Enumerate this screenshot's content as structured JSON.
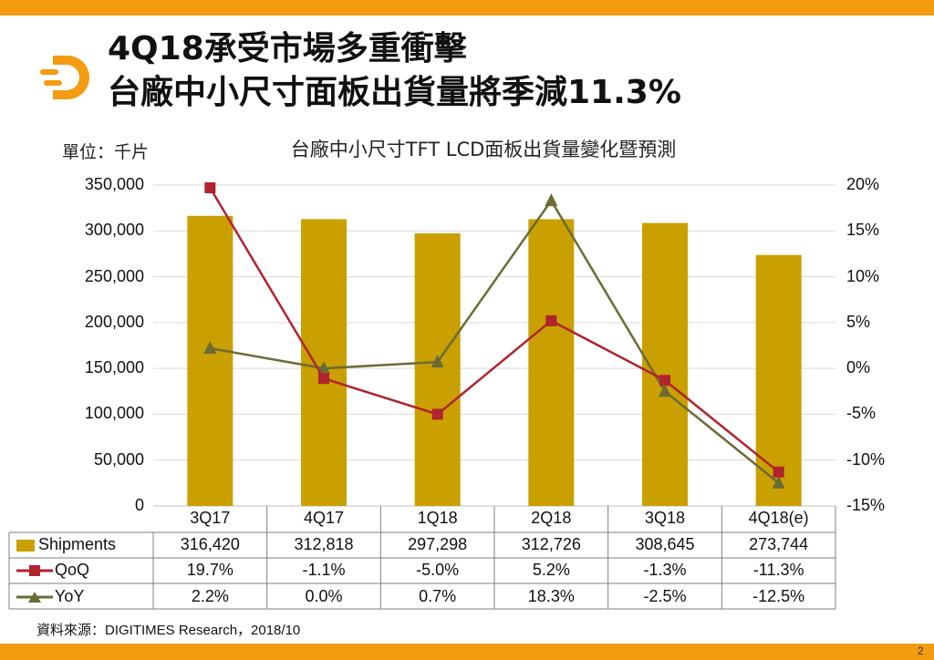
{
  "slide": {
    "title_line1": "4Q18承受市場多重衝擊",
    "title_line2": "台廠中小尺寸面板出貨量將季減11.3%",
    "source": "資料來源：DIGITIMES Research，2018/10",
    "page_number": "2"
  },
  "colors": {
    "accent": "#f39c12",
    "bar": "#c9a000",
    "qoq": "#b0232f",
    "yoy": "#6b6b35"
  },
  "chart_data": {
    "type": "bar",
    "title": "台廠中小尺寸TFT LCD面板出貨量變化暨預測",
    "unit_label": "單位：千片",
    "categories": [
      "3Q17",
      "4Q17",
      "1Q18",
      "2Q18",
      "3Q18",
      "4Q18(e)"
    ],
    "left_axis": {
      "min": 0,
      "max": 350000,
      "ticks": [
        "350,000",
        "300,000",
        "250,000",
        "200,000",
        "150,000",
        "100,000",
        "50,000",
        "0"
      ]
    },
    "right_axis": {
      "min": -15,
      "max": 20,
      "ticks": [
        "20%",
        "15%",
        "10%",
        "5%",
        "0%",
        "-5%",
        "-10%",
        "-15%"
      ]
    },
    "grid": true,
    "series": [
      {
        "name": "Shipments",
        "type": "bar",
        "axis": "left",
        "values": [
          316420,
          312818,
          297298,
          312726,
          308645,
          273744
        ],
        "labels": [
          "316,420",
          "312,818",
          "297,298",
          "312,726",
          "308,645",
          "273,744"
        ]
      },
      {
        "name": "QoQ",
        "type": "line",
        "axis": "right",
        "marker": "square",
        "values": [
          19.7,
          -1.1,
          -5.0,
          5.2,
          -1.3,
          -11.3
        ],
        "labels": [
          "19.7%",
          "-1.1%",
          "-5.0%",
          "5.2%",
          "-1.3%",
          "-11.3%"
        ]
      },
      {
        "name": "YoY",
        "type": "line",
        "axis": "right",
        "marker": "triangle",
        "values": [
          2.2,
          0.0,
          0.7,
          18.3,
          -2.5,
          -12.5
        ],
        "labels": [
          "2.2%",
          "0.0%",
          "0.7%",
          "18.3%",
          "-2.5%",
          "-12.5%"
        ]
      }
    ]
  }
}
